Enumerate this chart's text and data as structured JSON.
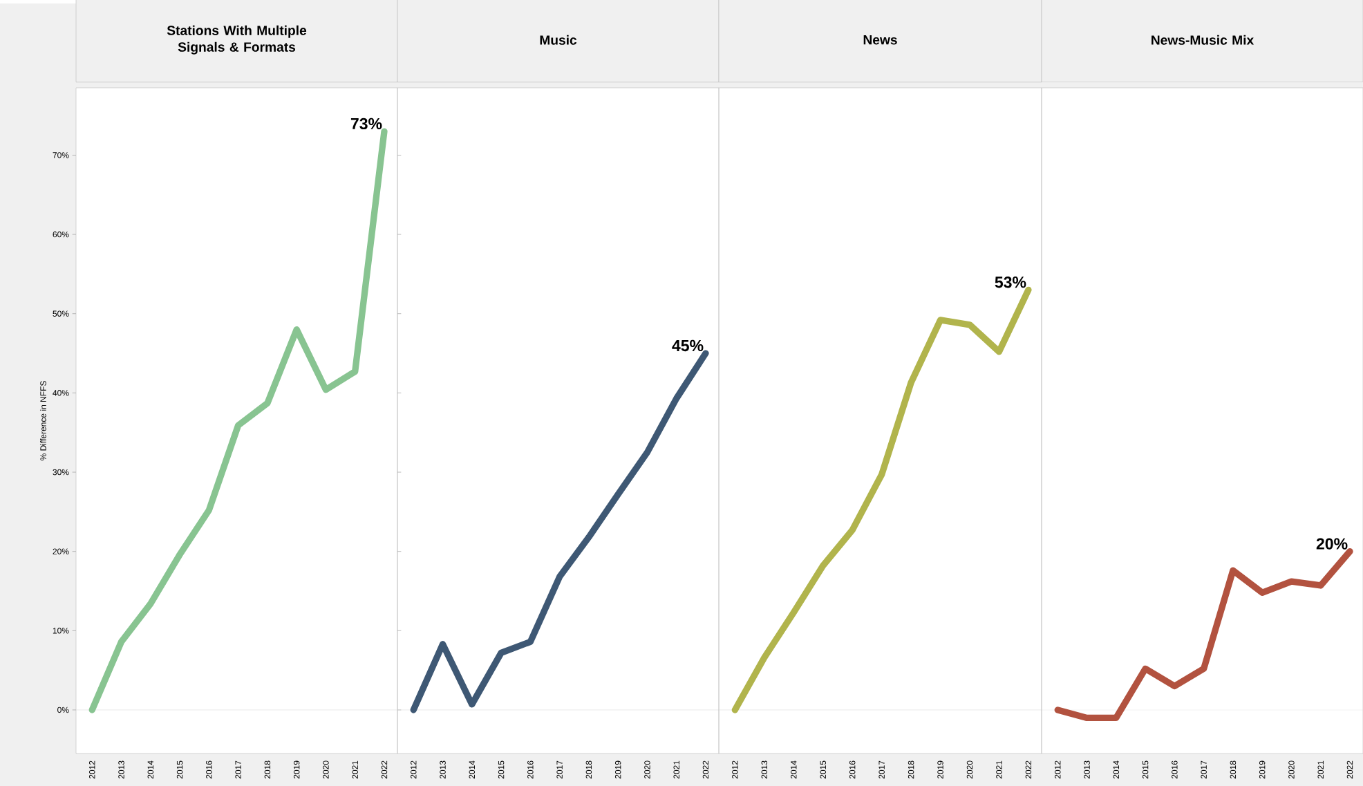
{
  "chart_data": [
    {
      "type": "line",
      "title": "Stations With Multiple Signals & Formats",
      "ylabel": "% Difference in NFFS",
      "categories": [
        "2012",
        "2013",
        "2014",
        "2015",
        "2016",
        "2017",
        "2018",
        "2019",
        "2020",
        "2021",
        "2022"
      ],
      "values": [
        0,
        8.6,
        13.4,
        19.6,
        25.2,
        35.9,
        38.7,
        48,
        40.4,
        42.7,
        73
      ],
      "value_labels": [
        null,
        null,
        null,
        null,
        null,
        null,
        null,
        null,
        null,
        null,
        "73%"
      ],
      "color": "#88c491",
      "ylim": [
        -5.5,
        78.5
      ],
      "yticks": [
        {
          "value": 0,
          "label": "0%"
        },
        {
          "value": 10,
          "label": "10%"
        },
        {
          "value": 20,
          "label": "20%"
        },
        {
          "value": 30,
          "label": "30%"
        },
        {
          "value": 40,
          "label": "40%"
        },
        {
          "value": 50,
          "label": "50%"
        },
        {
          "value": 60,
          "label": "60%"
        },
        {
          "value": 70,
          "label": "70%"
        }
      ],
      "ref_lines": [
        {
          "axis": "y",
          "value": 0,
          "color": "#d6d6d6"
        }
      ],
      "marker": "none",
      "line_style": "solid"
    },
    {
      "type": "line",
      "title": "Music",
      "categories": [
        "2012",
        "2013",
        "2014",
        "2015",
        "2016",
        "2017",
        "2018",
        "2019",
        "2020",
        "2021",
        "2022"
      ],
      "values": [
        0,
        8.3,
        0.7,
        7.2,
        8.6,
        16.8,
        21.8,
        27.2,
        32.5,
        39.3,
        45
      ],
      "value_labels": [
        null,
        null,
        null,
        null,
        null,
        null,
        null,
        null,
        null,
        null,
        "45%"
      ],
      "color": "#3e5874",
      "ylim": [
        -5.5,
        78.5
      ],
      "tick_labels": "x",
      "ref_lines": [
        {
          "axis": "y",
          "value": 0,
          "color": "#d6d6d6"
        }
      ],
      "marker": "none",
      "line_style": "solid"
    },
    {
      "type": "line",
      "title": "News",
      "categories": [
        "2012",
        "2013",
        "2014",
        "2015",
        "2016",
        "2017",
        "2018",
        "2019",
        "2020",
        "2021",
        "2022"
      ],
      "values": [
        0,
        6.6,
        12.3,
        18.2,
        22.7,
        29.7,
        41.3,
        49.2,
        48.6,
        45.2,
        53
      ],
      "value_labels": [
        null,
        null,
        null,
        null,
        null,
        null,
        null,
        null,
        null,
        null,
        "53%"
      ],
      "color": "#b1b44c",
      "ylim": [
        -5.5,
        78.5
      ],
      "tick_labels": "x",
      "ref_lines": [
        {
          "axis": "y",
          "value": 0,
          "color": "#d6d6d6"
        }
      ],
      "marker": "none",
      "line_style": "solid"
    },
    {
      "type": "line",
      "title": "News-Music Mix",
      "categories": [
        "2012",
        "2013",
        "2014",
        "2015",
        "2016",
        "2017",
        "2018",
        "2019",
        "2020",
        "2021",
        "2022"
      ],
      "values": [
        0,
        -1.0,
        -1.0,
        5.2,
        3.0,
        5.2,
        17.6,
        14.8,
        16.2,
        15.7,
        20
      ],
      "value_labels": [
        null,
        null,
        null,
        null,
        null,
        null,
        null,
        null,
        null,
        null,
        "20%"
      ],
      "color": "#b2523f",
      "ylim": [
        -5.5,
        78.5
      ],
      "tick_labels": "x",
      "ref_lines": [
        {
          "axis": "y",
          "value": 0,
          "color": "#d6d6d6"
        }
      ],
      "marker": "none",
      "line_style": "solid"
    }
  ]
}
